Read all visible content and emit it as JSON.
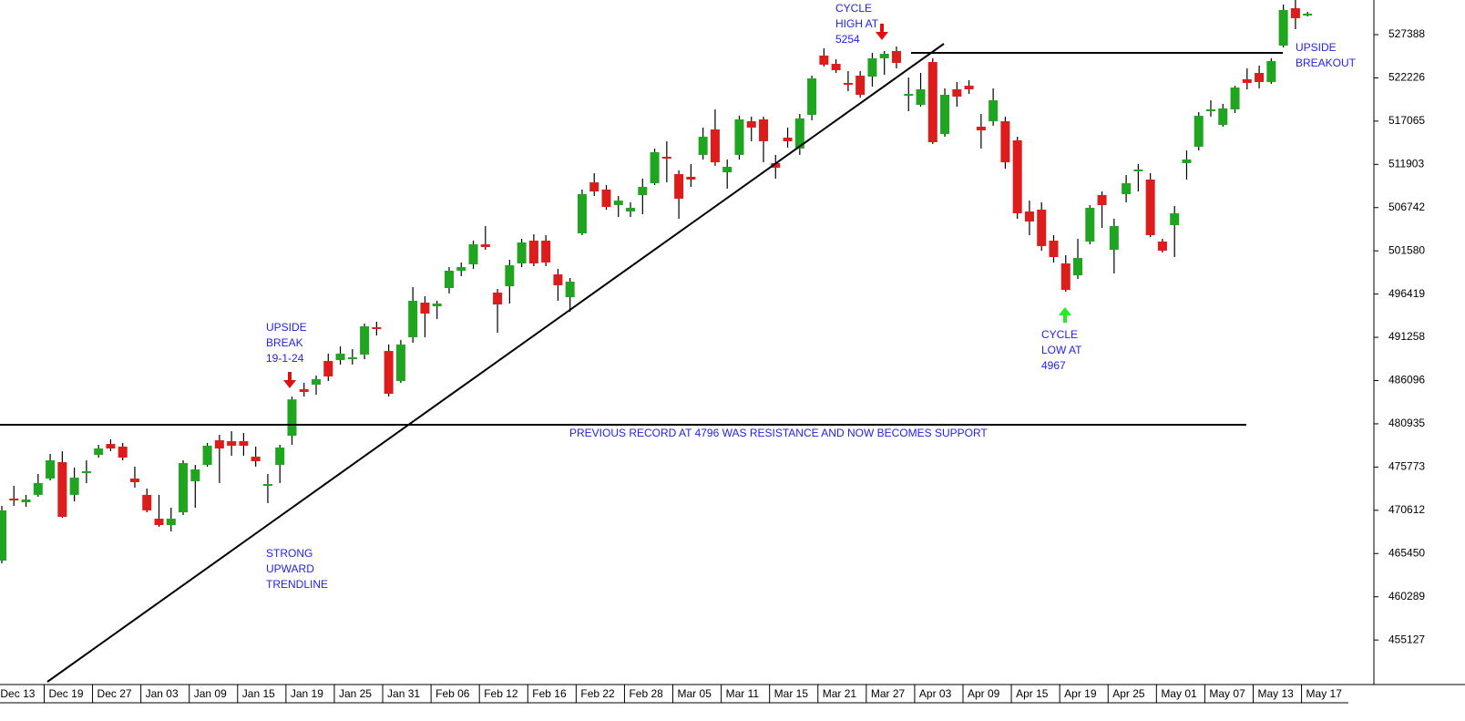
{
  "chart_data": {
    "type": "candlestick",
    "categories": [
      "Dec 13",
      null,
      null,
      null,
      "Dec 19",
      null,
      null,
      null,
      "Dec 27",
      null,
      null,
      null,
      "Jan 03",
      null,
      null,
      null,
      "Jan 09",
      null,
      null,
      null,
      "Jan 15",
      null,
      null,
      null,
      "Jan 19",
      null,
      null,
      null,
      "Jan 25",
      null,
      null,
      null,
      "Jan 31",
      null,
      null,
      null,
      "Feb 06",
      null,
      null,
      null,
      "Feb 12",
      null,
      null,
      null,
      "Feb 16",
      null,
      null,
      null,
      "Feb 22",
      null,
      null,
      null,
      "Feb 28",
      null,
      null,
      null,
      "Mar 05",
      null,
      null,
      null,
      "Mar 11",
      null,
      null,
      null,
      "Mar 15",
      null,
      null,
      null,
      "Mar 21",
      null,
      null,
      null,
      "Mar 27",
      null,
      null,
      null,
      "Apr 03",
      null,
      null,
      null,
      "Apr 09",
      null,
      null,
      null,
      "Apr 15",
      null,
      null,
      null,
      "Apr 19",
      null,
      null,
      null,
      "Apr 25",
      null,
      null,
      null,
      "May 01",
      null,
      null,
      null,
      "May 07",
      null,
      null,
      null,
      "May 13",
      null,
      null,
      null,
      "May 17",
      null,
      null,
      null
    ],
    "open": [
      464610,
      472010,
      471570,
      472450,
      474400,
      476360,
      472450,
      475050,
      477230,
      478530,
      478210,
      474400,
      472450,
      469610,
      468850,
      470370,
      474080,
      476030,
      478970,
      478860,
      478860,
      477010,
      473530,
      476030,
      479510,
      485060,
      485610,
      488440,
      488540,
      488650,
      489200,
      492460,
      489630,
      486040,
      491260,
      495400,
      494960,
      497140,
      499210,
      499970,
      502360,
      496600,
      497360,
      500080,
      502800,
      502800,
      498770,
      496050,
      503670,
      509760,
      508890,
      507040,
      506280,
      508240,
      509650,
      512810,
      510740,
      510420,
      513030,
      516070,
      510960,
      513030,
      517050,
      517270,
      512050,
      515090,
      513790,
      517810,
      524890,
      523900,
      521620,
      522490,
      522380,
      524560,
      525430,
      520100,
      519010,
      524120,
      515530,
      520860,
      521290,
      516400,
      517050,
      517050,
      514770,
      506280,
      506500,
      502800,
      500080,
      498660,
      502690,
      508240,
      501710,
      508350,
      511070,
      510090,
      502690,
      504650,
      512050,
      514010,
      518250,
      516610,
      518470,
      522060,
      522820,
      521730,
      526080,
      530540,
      529780,
      null,
      null,
      null
    ],
    "high": [
      471140,
      473530,
      472450,
      474950,
      477340,
      477660,
      475710,
      476580,
      478430,
      479080,
      478650,
      475820,
      473210,
      472450,
      470920,
      476580,
      476030,
      478650,
      479620,
      480060,
      479840,
      478210,
      474950,
      478430,
      484190,
      485820,
      486700,
      489310,
      490180,
      489850,
      492900,
      493110,
      490400,
      490940,
      497250,
      496160,
      495620,
      499640,
      500190,
      502800,
      504540,
      497030,
      500510,
      503020,
      503560,
      503450,
      499430,
      498340,
      508890,
      510850,
      509430,
      508130,
      507370,
      510200,
      513790,
      514660,
      511180,
      511940,
      516290,
      518470,
      512480,
      517700,
      517600,
      517600,
      513030,
      516290,
      517920,
      522490,
      525750,
      524450,
      523040,
      523040,
      525210,
      525430,
      525970,
      522270,
      522820,
      524560,
      520970,
      521730,
      521950,
      517920,
      520970,
      517600,
      515200,
      507580,
      507370,
      503450,
      501060,
      503020,
      507040,
      508670,
      505410,
      510630,
      511940,
      510850,
      503020,
      506930,
      513570,
      518140,
      519550,
      519120,
      521290,
      523360,
      523690,
      524560,
      530980,
      531520,
      530110,
      null,
      null,
      null
    ],
    "low": [
      464280,
      471140,
      471030,
      472230,
      474180,
      469720,
      471680,
      473860,
      476900,
      477660,
      476580,
      473320,
      470370,
      468630,
      468090,
      470050,
      470920,
      475820,
      473860,
      477120,
      477120,
      475820,
      471460,
      473860,
      478430,
      484190,
      484410,
      486040,
      488000,
      488000,
      488650,
      491480,
      484190,
      485820,
      490610,
      491260,
      493440,
      496490,
      498560,
      499430,
      501710,
      491810,
      495290,
      499640,
      499750,
      499750,
      495620,
      494310,
      503450,
      508130,
      506500,
      505630,
      505630,
      505950,
      509430,
      509760,
      505410,
      509220,
      512480,
      511720,
      509000,
      512480,
      514660,
      512150,
      510200,
      513900,
      513030,
      517160,
      523580,
      522820,
      520640,
      519880,
      521180,
      522600,
      523360,
      518250,
      518790,
      514330,
      515200,
      518790,
      520310,
      513790,
      516510,
      511390,
      505410,
      503450,
      501600,
      500190,
      496700,
      498230,
      502360,
      504320,
      498880,
      507370,
      508670,
      503230,
      501380,
      500840,
      510090,
      513570,
      517600,
      516400,
      518030,
      520860,
      520970,
      521510,
      525860,
      528040,
      529560,
      null,
      null,
      null
    ],
    "close": [
      470600,
      471790,
      471900,
      473860,
      476580,
      469830,
      474510,
      475270,
      477990,
      477990,
      476900,
      473970,
      470600,
      468850,
      469610,
      476250,
      475490,
      478320,
      477990,
      478320,
      478320,
      476470,
      473750,
      478100,
      483850,
      484740,
      486260,
      486590,
      489310,
      488870,
      492570,
      492240,
      484520,
      490400,
      495620,
      494090,
      495290,
      499210,
      499640,
      502360,
      502040,
      495180,
      499860,
      502580,
      500080,
      500190,
      497470,
      497900,
      508350,
      508670,
      506820,
      507580,
      506720,
      509220,
      513350,
      512590,
      507800,
      510090,
      515200,
      512150,
      511610,
      517270,
      516290,
      514660,
      511500,
      514660,
      517380,
      522160,
      523800,
      523140,
      521400,
      520210,
      524560,
      525100,
      524010,
      520310,
      520860,
      514550,
      520210,
      519990,
      520860,
      515960,
      519550,
      512150,
      506060,
      505080,
      502150,
      500840,
      496920,
      500730,
      506720,
      507040,
      504540,
      509650,
      511290,
      503450,
      501600,
      506060,
      512480,
      517700,
      518470,
      518580,
      521080,
      521620,
      521730,
      524230,
      530330,
      529350,
      529890,
      null,
      null,
      null
    ],
    "up_color": "#1fa51f",
    "down_color": "#dd1c1c",
    "ylim": [
      450140,
      531522
    ],
    "yticks": [
      455127,
      460289,
      465450,
      470612,
      475773,
      480935,
      486096,
      491258,
      496419,
      501580,
      506742,
      511903,
      517065,
      522226,
      527388
    ],
    "annotations": [
      [
        "CYCLE",
        "HIGH AT",
        "5254"
      ],
      [
        "UPSIDE",
        "BREAK",
        "19-1-24"
      ],
      [
        "STRONG",
        "UPWARD",
        "TRENDLINE"
      ],
      [
        "CYCLE",
        "LOW AT",
        "4967"
      ],
      [
        "UPSIDE",
        "BREAKOUT"
      ],
      [
        "PREVIOUS RECORD AT 4796 WAS RESISTANCE AND NOW BECOMES SUPPORT"
      ]
    ]
  }
}
